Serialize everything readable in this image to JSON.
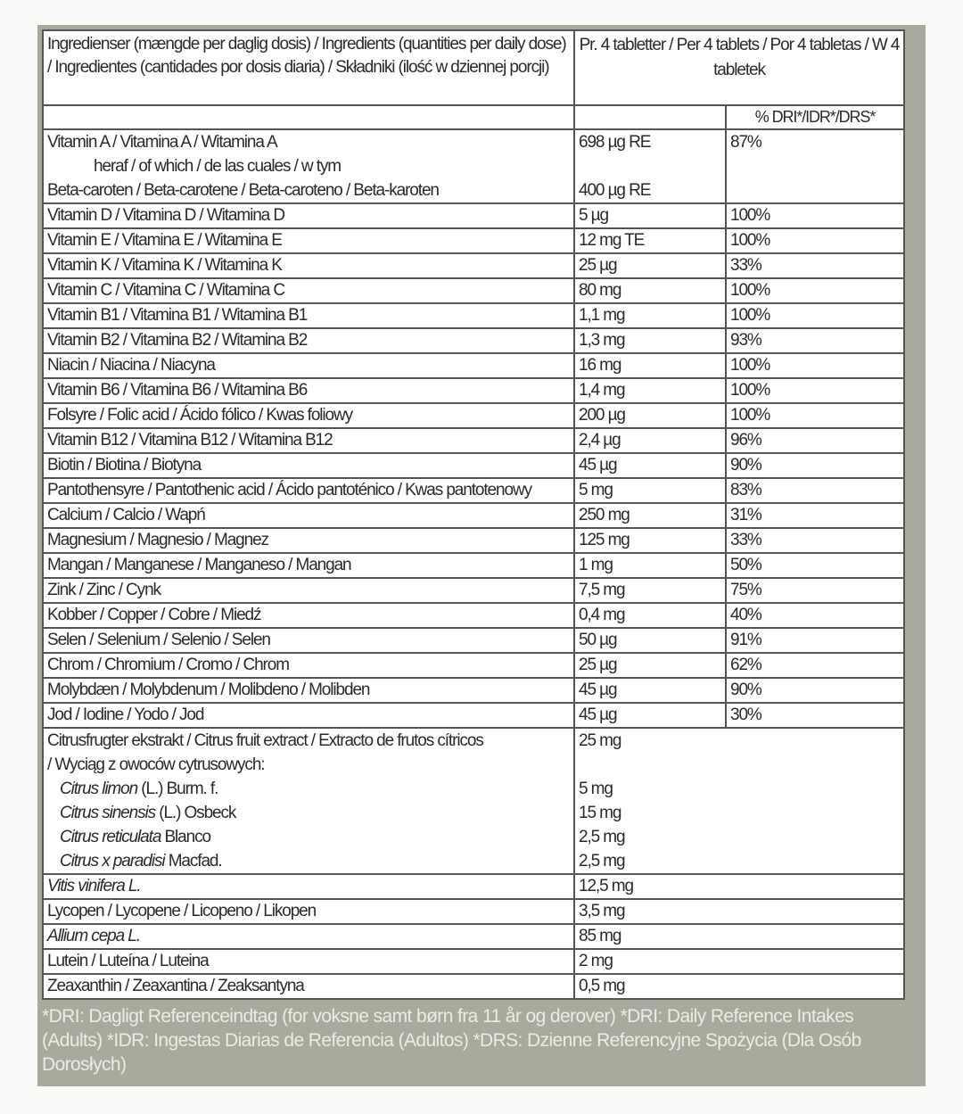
{
  "header": {
    "ingredients": "Ingredienser (mængde per daglig dosis) / Ingredients (quantities per daily dose) / Ingredientes (cantidades por dosis diaria) / Składniki (ilość w dziennej porcji)",
    "per_dose": "Pr. 4 tabletter / Per 4 tablets / Por 4 tabletas / W 4 tabletek",
    "dri": "% DRI*/IDR*/DRS*"
  },
  "vitamin_a": {
    "name": "Vitamin A / Vitamina A / Witamina A",
    "amount": "698 µg RE",
    "dri": "87%",
    "of_which": "heraf / of which / de las cuales / w tym",
    "beta_name": "Beta-caroten / Beta-carotene / Beta-caroteno / Beta-karoten",
    "beta_amount": "400 µg RE"
  },
  "rows": [
    {
      "name": "Vitamin D / Vitamina D / Witamina D",
      "amount": "5 µg",
      "dri": "100%"
    },
    {
      "name": "Vitamin E / Vitamina E / Witamina E",
      "amount": "12 mg TE",
      "dri": "100%"
    },
    {
      "name": "Vitamin K / Vitamina K / Witamina K",
      "amount": "25 µg",
      "dri": "33%"
    },
    {
      "name": "Vitamin C / Vitamina C / Witamina C",
      "amount": "80 mg",
      "dri": "100%"
    },
    {
      "name": "Vitamin B1 / Vitamina B1 / Witamina B1",
      "amount": "1,1 mg",
      "dri": "100%"
    },
    {
      "name": "Vitamin B2 / Vitamina B2 / Witamina B2",
      "amount": "1,3 mg",
      "dri": "93%"
    },
    {
      "name": "Niacin / Niacina / Niacyna",
      "amount": "16 mg",
      "dri": "100%"
    },
    {
      "name": "Vitamin B6 / Vitamina B6 / Witamina B6",
      "amount": "1,4 mg",
      "dri": "100%"
    },
    {
      "name": "Folsyre / Folic acid / Ácido fólico / Kwas foliowy",
      "amount": "200 µg",
      "dri": "100%"
    },
    {
      "name": "Vitamin B12 / Vitamina B12 / Witamina B12",
      "amount": "2,4 µg",
      "dri": "96%"
    },
    {
      "name": "Biotin / Biotina / Biotyna",
      "amount": "45 µg",
      "dri": "90%"
    },
    {
      "name": "Pantothensyre / Pantothenic acid / Ácido pantoténico / Kwas pantotenowy",
      "amount": "5 mg",
      "dri": "83%"
    },
    {
      "name": "Calcium / Calcio / Wapń",
      "amount": "250 mg",
      "dri": "31%"
    },
    {
      "name": "Magnesium / Magnesio / Magnez",
      "amount": "125 mg",
      "dri": "33%"
    },
    {
      "name": "Mangan / Manganese / Manganeso / Mangan",
      "amount": "1 mg",
      "dri": "50%"
    },
    {
      "name": "Zink / Zinc / Cynk",
      "amount": "7,5 mg",
      "dri": "75%"
    },
    {
      "name": "Kobber / Copper / Cobre / Miedź",
      "amount": "0,4 mg",
      "dri": "40%"
    },
    {
      "name": "Selen / Selenium / Selenio / Selen",
      "amount": "50 µg",
      "dri": "91%"
    },
    {
      "name": "Chrom / Chromium / Cromo / Chrom",
      "amount": "25 µg",
      "dri": "62%"
    },
    {
      "name": "Molybdæn / Molybdenum / Molibdeno / Molibden",
      "amount": "45 µg",
      "dri": "90%"
    },
    {
      "name": "Jod / Iodine / Yodo / Jod",
      "amount": "45 µg",
      "dri": "30%"
    }
  ],
  "citrus": {
    "name_line1": "Citrusfrugter ekstrakt / Citrus fruit extract / Extracto de frutos cítricos",
    "name_line2": "/ Wyciąg z owoców cytrusowych:",
    "amount": "25 mg",
    "species": [
      {
        "latin": "Citrus limon",
        "author": " (L.) Burm. f.",
        "amount": "5 mg"
      },
      {
        "latin": "Citrus sinensis",
        "author": " (L.) Osbeck",
        "amount": "15 mg"
      },
      {
        "latin": "Citrus reticulata",
        "author": " Blanco",
        "amount": "2,5 mg"
      },
      {
        "latin": "Citrus x paradisi",
        "author": " Macfad.",
        "amount": "2,5 mg"
      }
    ]
  },
  "other_rows": [
    {
      "name": "Vitis vinifera L.",
      "italic": true,
      "amount": "12,5 mg"
    },
    {
      "name": "Lycopen / Lycopene / Licopeno / Likopen",
      "italic": false,
      "amount": "3,5 mg"
    },
    {
      "name": "Allium cepa L.",
      "italic": true,
      "amount": "85 mg"
    },
    {
      "name": "Lutein / Luteína / Luteina",
      "italic": false,
      "amount": "2 mg"
    },
    {
      "name": "Zeaxanthin / Zeaxantina / Zeaksantyna",
      "italic": false,
      "amount": "0,5 mg"
    }
  ],
  "footnote": "*DRI: Dagligt Referenceindtag (for voksne samt børn fra 11 år og derover) *DRI: Daily Reference Intakes (Adults) *IDR: Ingestas Diarias de Referencia (Adultos) *DRS: Dzienne Referencyjne Spożycia (Dla Osób Dorosłych)",
  "colors": {
    "panel": "#a9a99d",
    "table_bg": "#ffffff",
    "text": "#2a2a28",
    "footnote": "#ecece4"
  }
}
